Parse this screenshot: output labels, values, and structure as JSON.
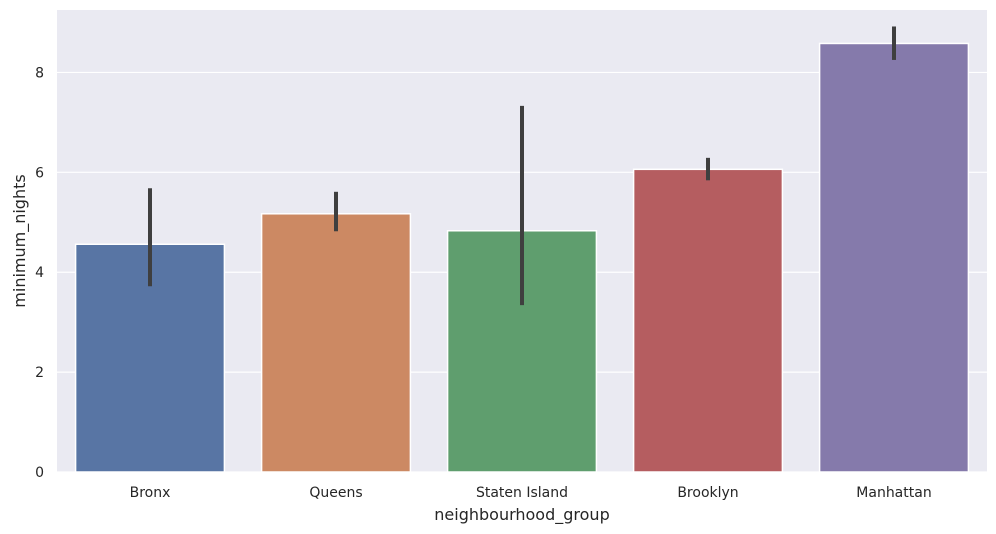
{
  "chart_data": {
    "type": "bar",
    "xlabel": "neighbourhood_group",
    "ylabel": "minimum_nights",
    "categories": [
      "Bronx",
      "Queens",
      "Staten Island",
      "Brooklyn",
      "Manhattan"
    ],
    "values": [
      4.56,
      5.17,
      4.83,
      6.06,
      8.58
    ],
    "error_low": [
      3.72,
      4.82,
      3.34,
      5.84,
      8.25
    ],
    "error_high": [
      5.68,
      5.61,
      7.33,
      6.29,
      8.92
    ],
    "ylim": [
      0,
      9.25
    ],
    "yticks": [
      0,
      2,
      4,
      6,
      8
    ],
    "grid": true,
    "colors": [
      "#5875a4",
      "#cc8963",
      "#5f9e6e",
      "#b55d60",
      "#857aab"
    ],
    "error_color": "#3f3f3f",
    "background": "#eaeaf2"
  }
}
